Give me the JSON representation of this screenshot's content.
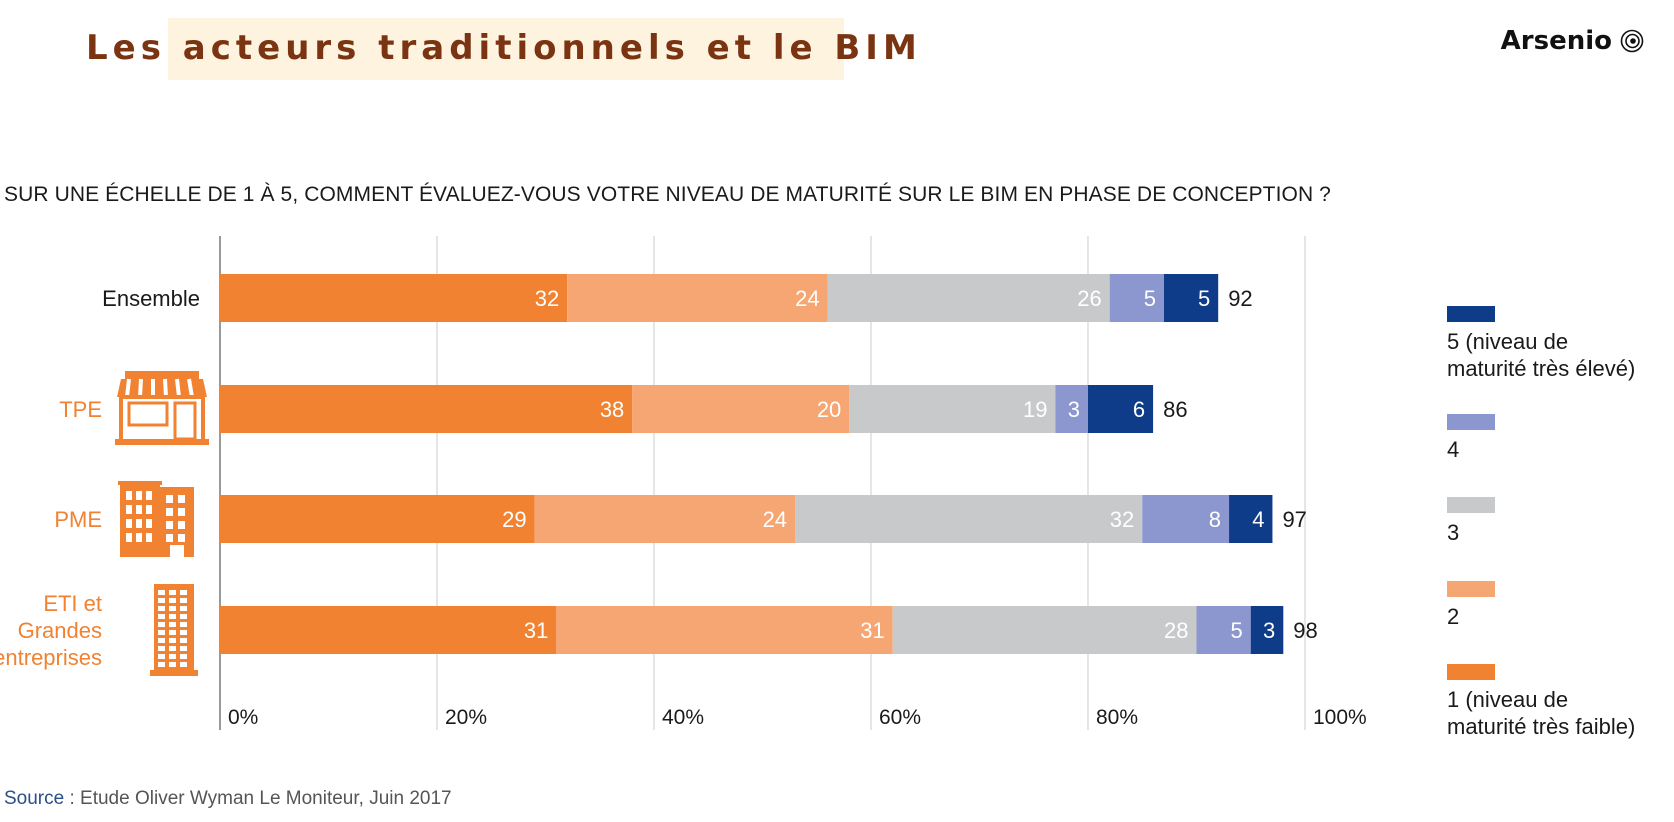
{
  "header": {
    "title": "Les acteurs traditionnels et le BIM",
    "brand": "Arsenio",
    "brand_icon": "spiral-logo-icon"
  },
  "question": "SUR UNE ÉCHELLE DE 1 À 5, COMMENT ÉVALUEZ-VOUS VOTRE NIVEAU DE MATURITÉ SUR LE BIM EN PHASE DE CONCEPTION ?",
  "source": {
    "label": "Source",
    "text": " : Etude Oliver Wyman Le Moniteur, Juin 2017"
  },
  "chart_data": {
    "type": "bar",
    "orientation": "horizontal",
    "stacked": true,
    "categories": [
      {
        "label": [
          "Ensemble"
        ],
        "icon": null,
        "highlight": false
      },
      {
        "label": [
          "TPE"
        ],
        "icon": "shop-icon",
        "highlight": true
      },
      {
        "label": [
          "PME"
        ],
        "icon": "building-icon",
        "highlight": true
      },
      {
        "label": [
          "ETI et",
          "Grandes",
          "entreprises"
        ],
        "icon": "tower-icon",
        "highlight": true
      }
    ],
    "series": [
      {
        "name": "1 (niveau de maturité très faible)",
        "key": "1",
        "color": "#f08232",
        "values": [
          32,
          38,
          29,
          31
        ]
      },
      {
        "name": "2",
        "key": "2",
        "color": "#f5a673",
        "values": [
          24,
          20,
          24,
          31
        ]
      },
      {
        "name": "3",
        "key": "3",
        "color": "#c8c9cb",
        "values": [
          26,
          19,
          32,
          28
        ]
      },
      {
        "name": "4",
        "key": "4",
        "color": "#8c97cf",
        "values": [
          5,
          3,
          8,
          5
        ]
      },
      {
        "name": "5 (niveau de maturité très élevé)",
        "key": "5",
        "color": "#0f3c88",
        "values": [
          5,
          6,
          4,
          3
        ]
      }
    ],
    "totals": [
      92,
      86,
      97,
      98
    ],
    "xlim": [
      0,
      100
    ],
    "xticks": [
      "0%",
      "20%",
      "40%",
      "60%",
      "80%",
      "100%"
    ],
    "legend": {
      "placement": "right",
      "items": [
        {
          "key": "5",
          "lines": [
            "5 (niveau de",
            "maturité très élevé)"
          ]
        },
        {
          "key": "4",
          "lines": [
            "4"
          ]
        },
        {
          "key": "3",
          "lines": [
            "3"
          ]
        },
        {
          "key": "2",
          "lines": [
            "2"
          ]
        },
        {
          "key": "1",
          "lines": [
            "1 (niveau de",
            "maturité très faible)"
          ]
        }
      ]
    },
    "grid": true,
    "colors": {
      "category_highlight": "#f08232",
      "category_default": "#1a1a1a",
      "label_on_bar": "#ffffff",
      "grid": "#d4d4d4"
    }
  }
}
